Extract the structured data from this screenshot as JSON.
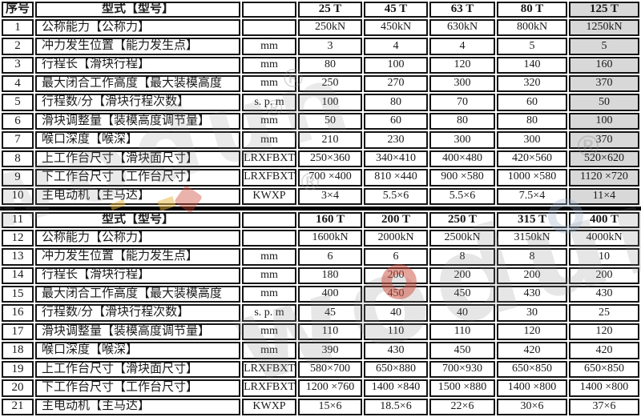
{
  "colors": {
    "highlight_bg": "#d8d8d8",
    "grid": "#141414",
    "watermark_red": "#cb493a",
    "watermark_yellow": "#e6b43c"
  },
  "header": {
    "index_label": "序号",
    "type_label": "型式【型号】"
  },
  "section1": {
    "models": [
      "25 T",
      "45 T",
      "63 T",
      "80 T",
      "125 T"
    ],
    "rows": [
      {
        "no": "1",
        "label": "公称能力【公称力】",
        "unit": "",
        "values": [
          "250kN",
          "450kN",
          "630kN",
          "800kN",
          "1250kN"
        ]
      },
      {
        "no": "2",
        "label": "冲力发生位置【能力发生点】",
        "unit": "mm",
        "values": [
          "3",
          "4",
          "4",
          "5",
          "5"
        ]
      },
      {
        "no": "3",
        "label": "行程长【滑块行程】",
        "unit": "mm",
        "values": [
          "80",
          "100",
          "120",
          "140",
          "160"
        ]
      },
      {
        "no": "4",
        "label": "最大闭合工作高度【最大装模高度",
        "unit": "mm",
        "values": [
          "250",
          "270",
          "300",
          "320",
          "370"
        ]
      },
      {
        "no": "5",
        "label": "行程数/分【滑块行程次数】",
        "unit": "s. p. m",
        "values": [
          "100",
          "80",
          "70",
          "60",
          "50"
        ]
      },
      {
        "no": "6",
        "label": "滑块调整量【装模高度调节量】",
        "unit": "mm",
        "values": [
          "50",
          "60",
          "80",
          "80",
          "100"
        ]
      },
      {
        "no": "7",
        "label": "喉口深度【喉深】",
        "unit": "mm",
        "values": [
          "210",
          "230",
          "300",
          "300",
          "370"
        ]
      },
      {
        "no": "8",
        "label": "上工作台尺寸【滑块面尺寸】",
        "unit": "LRXFBXT",
        "values": [
          "250×360",
          "340×410",
          "400×480",
          "420×560",
          "520×620"
        ]
      },
      {
        "no": "9",
        "label": "下工作台尺寸【工作台尺寸】",
        "unit": "LRXFBXT",
        "values": [
          "700 ×400",
          "810 ×440",
          "900 ×580",
          "1000 ×580",
          "1120 ×720"
        ]
      },
      {
        "no": "10",
        "label": "主电动机【主马达】",
        "unit": "KWXP",
        "values": [
          "3×4",
          "5.5×6",
          "5.5×6",
          "7.5×4",
          "11×4"
        ]
      }
    ]
  },
  "section2": {
    "no": "11",
    "type_label": "型式【型号】",
    "models": [
      "160 T",
      "200 T",
      "250 T",
      "315 T",
      "400 T"
    ],
    "rows": [
      {
        "no": "12",
        "label": "公称能力【公称力】",
        "unit": "",
        "values": [
          "1600kN",
          "2000kN",
          "2500kN",
          "3150kN",
          "4000kN"
        ]
      },
      {
        "no": "13",
        "label": "冲力发生位置【能力发生点】",
        "unit": "mm",
        "values": [
          "6",
          "6",
          "8",
          "8",
          "10"
        ]
      },
      {
        "no": "14",
        "label": "行程长【滑块行程】",
        "unit": "mm",
        "values": [
          "180",
          "200",
          "200",
          "200",
          "200"
        ]
      },
      {
        "no": "15",
        "label": "最大闭合工作高度【最大装模高度",
        "unit": "mm",
        "values": [
          "400",
          "450",
          "450",
          "430",
          "430"
        ]
      },
      {
        "no": "16",
        "label": "行程数/分【滑块行程次数】",
        "unit": "s. p. m",
        "values": [
          "45",
          "40",
          "40",
          "30",
          "25"
        ]
      },
      {
        "no": "17",
        "label": "滑块调整量【装模高度调节量】",
        "unit": "mm",
        "values": [
          "110",
          "110",
          "110",
          "120",
          "120"
        ]
      },
      {
        "no": "18",
        "label": "喉口深度【喉深】",
        "unit": "mm",
        "values": [
          "390",
          "430",
          "450",
          "420",
          "420"
        ]
      },
      {
        "no": "19",
        "label": "上工作台尺寸【滑块面尺寸】",
        "unit": "LRXFBXT",
        "values": [
          "580×700",
          "650×880",
          "700×930",
          "650×850",
          "650×850"
        ]
      },
      {
        "no": "20",
        "label": "下工作台尺寸【工作台尺寸】",
        "unit": "LRXFBXT",
        "values": [
          "1200 ×760",
          "1400 ×840",
          "1500 ×880",
          "1400 ×800",
          "1400 ×800"
        ]
      },
      {
        "no": "21",
        "label": "主电动机【主马达】",
        "unit": "KWXP",
        "values": [
          "15×6",
          "18.5×6",
          "22×6",
          "30×6",
          "37×6"
        ]
      }
    ]
  },
  "watermark": {
    "brand_text": "wodun",
    "registered_mark": "®"
  }
}
